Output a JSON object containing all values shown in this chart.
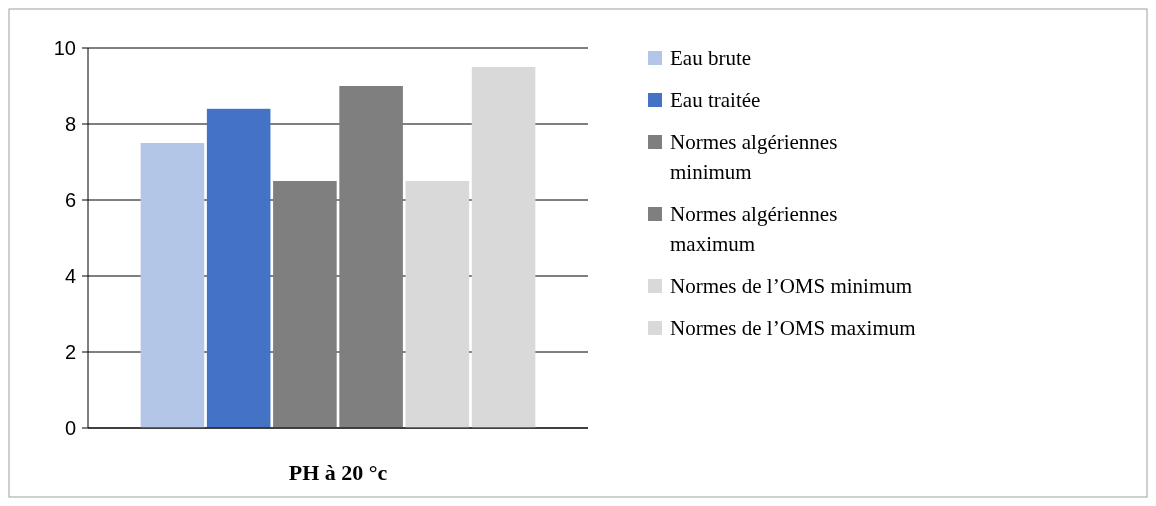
{
  "chart_data": {
    "type": "bar",
    "xlabel": "PH à 20 °c",
    "categories": [
      null
    ],
    "series": [
      {
        "name": "Eau brute",
        "color": "#b3c6e7",
        "values": [
          7.5
        ]
      },
      {
        "name": "Eau traitée",
        "color": "#4472c4",
        "values": [
          8.4
        ]
      },
      {
        "name": "Normes algériennes minimum",
        "color": "#7f7f7f",
        "values": [
          6.5
        ]
      },
      {
        "name": "Normes algériennes maximum",
        "color": "#7f7f7f",
        "values": [
          9
        ]
      },
      {
        "name": "Normes de l’OMS minimum",
        "color": "#d9d9d9",
        "values": [
          6.5
        ]
      },
      {
        "name": "Normes de l’OMS maximum",
        "color": "#d9d9d9",
        "values": [
          9.5
        ]
      }
    ],
    "ylim": [
      0,
      10
    ],
    "yticks": [
      0,
      2,
      4,
      6,
      8,
      10
    ],
    "grid": "y",
    "legend": "right"
  }
}
